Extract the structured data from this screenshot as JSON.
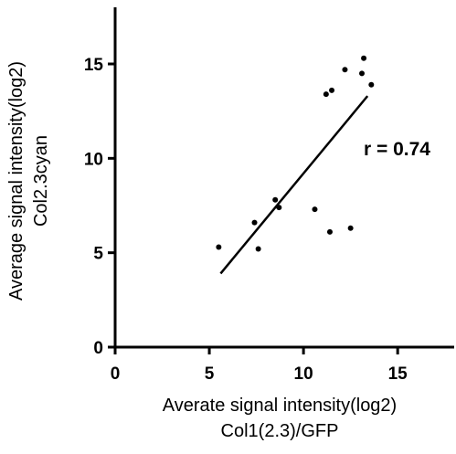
{
  "chart_data": {
    "type": "scatter",
    "xlabel": [
      "Averate signal intensity(log2)",
      "Col1(2.3)/GFP"
    ],
    "ylabel": [
      "Average signal intensity(log2)",
      "Col2.3cyan"
    ],
    "xlim": [
      0,
      18
    ],
    "ylim": [
      0,
      18
    ],
    "xticks": [
      "0",
      "5",
      "10",
      "15"
    ],
    "yticks": [
      "0",
      "5",
      "10",
      "15"
    ],
    "grid": false,
    "legend": "none",
    "annotation": "r = 0.74",
    "series": [
      {
        "points": [
          {
            "x": 5.5,
            "y": 5.3
          },
          {
            "x": 7.4,
            "y": 6.6
          },
          {
            "x": 7.6,
            "y": 5.2
          },
          {
            "x": 8.5,
            "y": 7.8
          },
          {
            "x": 8.7,
            "y": 7.4
          },
          {
            "x": 10.6,
            "y": 7.3
          },
          {
            "x": 11.2,
            "y": 13.4
          },
          {
            "x": 11.4,
            "y": 6.1
          },
          {
            "x": 11.5,
            "y": 13.6
          },
          {
            "x": 12.2,
            "y": 14.7
          },
          {
            "x": 12.5,
            "y": 6.3
          },
          {
            "x": 13.1,
            "y": 14.5
          },
          {
            "x": 13.2,
            "y": 15.3
          },
          {
            "x": 13.6,
            "y": 13.9
          }
        ],
        "color": "#000000"
      }
    ],
    "fit_line": {
      "x": [
        5.6,
        13.4
      ],
      "y": [
        3.9,
        13.3
      ]
    }
  }
}
